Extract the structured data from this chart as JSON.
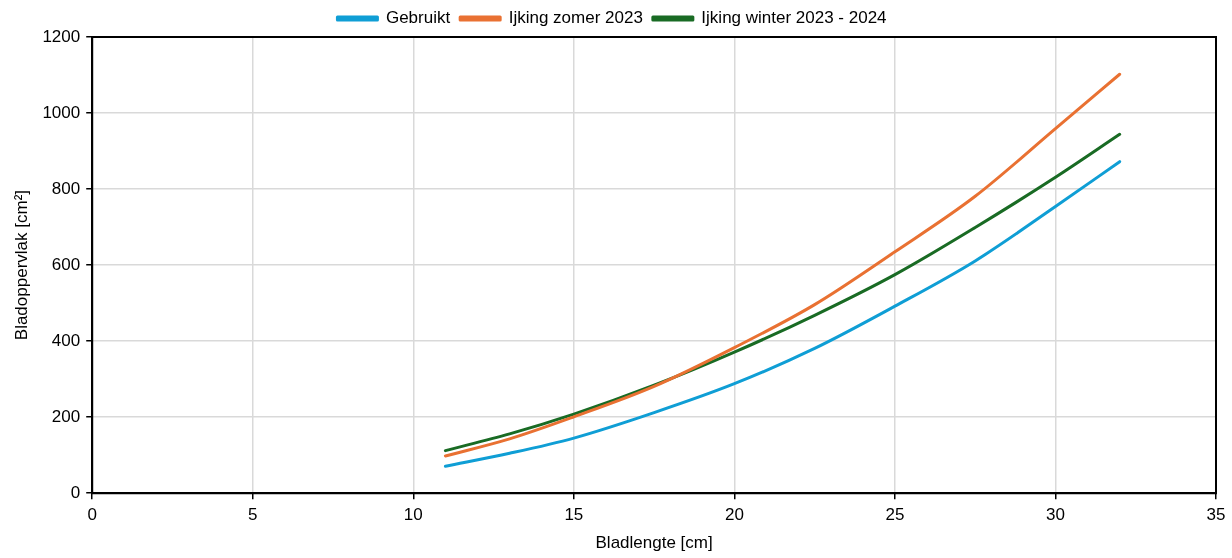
{
  "chart_data": {
    "type": "line",
    "xlabel": "Bladlengte [cm]",
    "ylabel": "Bladoppervlak [cm²]",
    "xlim": [
      0,
      35
    ],
    "xticks": [
      0,
      5,
      10,
      15,
      20,
      25,
      30,
      35
    ],
    "ylim": [
      0,
      1200
    ],
    "yticks": [
      0,
      200,
      400,
      600,
      800,
      1000,
      1200
    ],
    "grid": true,
    "legend": "top",
    "marker": "none",
    "line_style": "solid",
    "x": [
      11,
      13,
      15,
      17.5,
      20,
      22.5,
      25,
      27.5,
      30,
      32
    ],
    "series": [
      {
        "name": "Gebruikt",
        "color": "#0f9ed5",
        "values": [
          71,
          105,
          145,
          212,
          288,
          381,
          492,
          611,
          754,
          872
        ]
      },
      {
        "name": "Ijking zomer 2023",
        "color": "#e97132",
        "values": [
          98,
          143,
          201,
          281,
          383,
          496,
          635,
          781,
          959,
          1102
        ]
      },
      {
        "name": "Ijking winter 2023 - 2024",
        "color": "#196b24",
        "values": [
          112,
          156,
          208,
          284,
          371,
          468,
          575,
          699,
          831,
          944
        ]
      }
    ]
  }
}
